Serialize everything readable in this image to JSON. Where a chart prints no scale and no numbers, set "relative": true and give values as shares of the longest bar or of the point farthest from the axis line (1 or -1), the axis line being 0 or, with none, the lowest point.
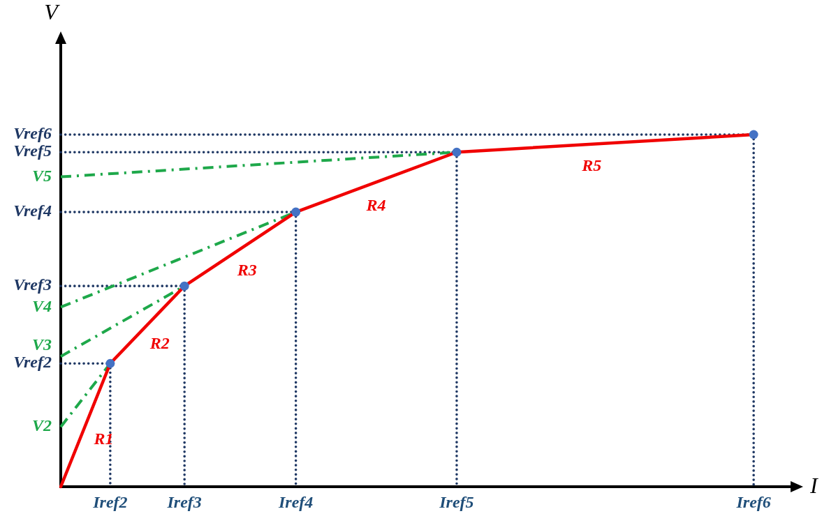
{
  "chart_data": {
    "type": "line",
    "relative": true,
    "xlabel": "I",
    "ylabel": "V",
    "categories": [
      null,
      null,
      null,
      null,
      "Iref2",
      null,
      null,
      null,
      null,
      null,
      "Iref3",
      null,
      null,
      null,
      null,
      null,
      null,
      null,
      null,
      "Iref4",
      null,
      null,
      null,
      null,
      null,
      null,
      null,
      null,
      null,
      null,
      null,
      null,
      "Iref5",
      null,
      null,
      null,
      null,
      null,
      null,
      null,
      null,
      null,
      null,
      null,
      null,
      null,
      null,
      null,
      null,
      null,
      null,
      null,
      null,
      null,
      null,
      null,
      "Iref6",
      null,
      null,
      null,
      null
    ],
    "series": [
      {
        "name": "Vref2",
        "color": "#1f3864",
        "line_style": "dotted",
        "values": [
          0.35,
          null,
          null,
          null,
          0.35,
          null,
          null,
          null,
          null,
          null,
          null,
          null,
          null,
          null,
          null,
          null,
          null,
          null,
          null,
          null,
          null,
          null,
          null,
          null,
          null,
          null,
          null,
          null,
          null,
          null,
          null,
          null,
          null,
          null,
          null,
          null,
          null,
          null,
          null,
          null,
          null,
          null,
          null,
          null,
          null,
          null,
          null,
          null,
          null,
          null,
          null,
          null,
          null,
          null,
          null,
          null,
          null,
          null,
          null,
          null,
          null
        ]
      },
      {
        "name": "Vref3",
        "color": "#1f3864",
        "line_style": "dotted",
        "values": [
          0.57,
          null,
          null,
          null,
          null,
          null,
          null,
          null,
          null,
          null,
          0.57,
          null,
          null,
          null,
          null,
          null,
          null,
          null,
          null,
          null,
          null,
          null,
          null,
          null,
          null,
          null,
          null,
          null,
          null,
          null,
          null,
          null,
          null,
          null,
          null,
          null,
          null,
          null,
          null,
          null,
          null,
          null,
          null,
          null,
          null,
          null,
          null,
          null,
          null,
          null,
          null,
          null,
          null,
          null,
          null,
          null,
          null,
          null,
          null,
          null,
          null
        ]
      },
      {
        "name": "Vref4",
        "color": "#1f3864",
        "line_style": "dotted",
        "values": [
          0.78,
          null,
          null,
          null,
          null,
          null,
          null,
          null,
          null,
          null,
          null,
          null,
          null,
          null,
          null,
          null,
          null,
          null,
          null,
          0.78,
          null,
          null,
          null,
          null,
          null,
          null,
          null,
          null,
          null,
          null,
          null,
          null,
          null,
          null,
          null,
          null,
          null,
          null,
          null,
          null,
          null,
          null,
          null,
          null,
          null,
          null,
          null,
          null,
          null,
          null,
          null,
          null,
          null,
          null,
          null,
          null,
          null,
          null,
          null,
          null,
          null
        ]
      },
      {
        "name": "Vref5",
        "color": "#1f3864",
        "line_style": "dotted",
        "values": [
          0.95,
          null,
          null,
          null,
          null,
          null,
          null,
          null,
          null,
          null,
          null,
          null,
          null,
          null,
          null,
          null,
          null,
          null,
          null,
          null,
          null,
          null,
          null,
          null,
          null,
          null,
          null,
          null,
          null,
          null,
          null,
          null,
          0.95,
          null,
          null,
          null,
          null,
          null,
          null,
          null,
          null,
          null,
          null,
          null,
          null,
          null,
          null,
          null,
          null,
          null,
          null,
          null,
          null,
          null,
          null,
          null,
          null,
          null,
          null,
          null,
          null
        ]
      },
      {
        "name": "Vref6",
        "color": "#1f3864",
        "line_style": "dotted",
        "values": [
          1,
          null,
          null,
          null,
          null,
          null,
          null,
          null,
          null,
          null,
          null,
          null,
          null,
          null,
          null,
          null,
          null,
          null,
          null,
          null,
          null,
          null,
          null,
          null,
          null,
          null,
          null,
          null,
          null,
          null,
          null,
          null,
          null,
          null,
          null,
          null,
          null,
          null,
          null,
          null,
          null,
          null,
          null,
          null,
          null,
          null,
          null,
          null,
          null,
          null,
          null,
          null,
          null,
          null,
          null,
          null,
          1,
          null,
          null,
          null,
          null
        ]
      },
      {
        "color": "#1f3864",
        "line_style": "dotted",
        "x": [
          "Iref2",
          "Iref2"
        ],
        "values": [
          0.35,
          0
        ]
      },
      {
        "color": "#1f3864",
        "line_style": "dotted",
        "x": [
          "Iref3",
          "Iref3"
        ],
        "values": [
          0.57,
          0
        ]
      },
      {
        "color": "#1f3864",
        "line_style": "dotted",
        "x": [
          "Iref4",
          "Iref4"
        ],
        "values": [
          0.78,
          0
        ]
      },
      {
        "color": "#1f3864",
        "line_style": "dotted",
        "x": [
          "Iref5",
          "Iref5"
        ],
        "values": [
          0.95,
          0
        ]
      },
      {
        "color": "#1f3864",
        "line_style": "dotted",
        "x": [
          "Iref6",
          "Iref6"
        ],
        "values": [
          1,
          0
        ]
      },
      {
        "name": "V2",
        "color": "#1ea84a",
        "line_style": "dashed",
        "values": [
          0.17,
          null,
          null,
          null,
          0.35,
          null,
          null,
          null,
          null,
          null,
          null,
          null,
          null,
          null,
          null,
          null,
          null,
          null,
          null,
          null,
          null,
          null,
          null,
          null,
          null,
          null,
          null,
          null,
          null,
          null,
          null,
          null,
          null,
          null,
          null,
          null,
          null,
          null,
          null,
          null,
          null,
          null,
          null,
          null,
          null,
          null,
          null,
          null,
          null,
          null,
          null,
          null,
          null,
          null,
          null,
          null,
          null,
          null,
          null,
          null,
          null
        ]
      },
      {
        "name": "V3",
        "color": "#1ea84a",
        "line_style": "dashed",
        "values": [
          0.37,
          null,
          null,
          null,
          null,
          null,
          null,
          null,
          null,
          null,
          0.57,
          null,
          null,
          null,
          null,
          null,
          null,
          null,
          null,
          null,
          null,
          null,
          null,
          null,
          null,
          null,
          null,
          null,
          null,
          null,
          null,
          null,
          null,
          null,
          null,
          null,
          null,
          null,
          null,
          null,
          null,
          null,
          null,
          null,
          null,
          null,
          null,
          null,
          null,
          null,
          null,
          null,
          null,
          null,
          null,
          null,
          null,
          null,
          null,
          null,
          null
        ]
      },
      {
        "name": "V4",
        "color": "#1ea84a",
        "line_style": "dashed",
        "values": [
          0.51,
          null,
          null,
          null,
          null,
          null,
          null,
          null,
          null,
          null,
          null,
          null,
          null,
          null,
          null,
          null,
          null,
          null,
          null,
          0.78,
          null,
          null,
          null,
          null,
          null,
          null,
          null,
          null,
          null,
          null,
          null,
          null,
          null,
          null,
          null,
          null,
          null,
          null,
          null,
          null,
          null,
          null,
          null,
          null,
          null,
          null,
          null,
          null,
          null,
          null,
          null,
          null,
          null,
          null,
          null,
          null,
          null,
          null,
          null,
          null,
          null
        ]
      },
      {
        "name": "V5",
        "color": "#1ea84a",
        "line_style": "dashed",
        "values": [
          0.88,
          null,
          null,
          null,
          null,
          null,
          null,
          null,
          null,
          null,
          null,
          null,
          null,
          null,
          null,
          null,
          null,
          null,
          null,
          null,
          null,
          null,
          null,
          null,
          null,
          null,
          null,
          null,
          null,
          null,
          null,
          null,
          0.95,
          null,
          null,
          null,
          null,
          null,
          null,
          null,
          null,
          null,
          null,
          null,
          null,
          null,
          null,
          null,
          null,
          null,
          null,
          null,
          null,
          null,
          null,
          null,
          null,
          null,
          null,
          null,
          null
        ]
      },
      {
        "name": "R1",
        "color": "#f00000",
        "values": [
          0,
          null,
          null,
          null,
          0.35,
          null,
          null,
          null,
          null,
          null,
          null,
          null,
          null,
          null,
          null,
          null,
          null,
          null,
          null,
          null,
          null,
          null,
          null,
          null,
          null,
          null,
          null,
          null,
          null,
          null,
          null,
          null,
          null,
          null,
          null,
          null,
          null,
          null,
          null,
          null,
          null,
          null,
          null,
          null,
          null,
          null,
          null,
          null,
          null,
          null,
          null,
          null,
          null,
          null,
          null,
          null,
          null,
          null,
          null,
          null,
          null
        ]
      },
      {
        "name": "R2",
        "color": "#f00000",
        "values": [
          null,
          null,
          null,
          null,
          0.35,
          null,
          null,
          null,
          null,
          null,
          0.57,
          null,
          null,
          null,
          null,
          null,
          null,
          null,
          null,
          null,
          null,
          null,
          null,
          null,
          null,
          null,
          null,
          null,
          null,
          null,
          null,
          null,
          null,
          null,
          null,
          null,
          null,
          null,
          null,
          null,
          null,
          null,
          null,
          null,
          null,
          null,
          null,
          null,
          null,
          null,
          null,
          null,
          null,
          null,
          null,
          null,
          null,
          null,
          null,
          null,
          null
        ]
      },
      {
        "name": "R3",
        "color": "#f00000",
        "values": [
          null,
          null,
          null,
          null,
          null,
          null,
          null,
          null,
          null,
          null,
          0.57,
          null,
          null,
          null,
          null,
          null,
          null,
          null,
          null,
          0.78,
          null,
          null,
          null,
          null,
          null,
          null,
          null,
          null,
          null,
          null,
          null,
          null,
          null,
          null,
          null,
          null,
          null,
          null,
          null,
          null,
          null,
          null,
          null,
          null,
          null,
          null,
          null,
          null,
          null,
          null,
          null,
          null,
          null,
          null,
          null,
          null,
          null,
          null,
          null,
          null,
          null
        ]
      },
      {
        "name": "R4",
        "color": "#f00000",
        "values": [
          null,
          null,
          null,
          null,
          null,
          null,
          null,
          null,
          null,
          null,
          null,
          null,
          null,
          null,
          null,
          null,
          null,
          null,
          null,
          0.78,
          null,
          null,
          null,
          null,
          null,
          null,
          null,
          null,
          null,
          null,
          null,
          null,
          0.95,
          null,
          null,
          null,
          null,
          null,
          null,
          null,
          null,
          null,
          null,
          null,
          null,
          null,
          null,
          null,
          null,
          null,
          null,
          null,
          null,
          null,
          null,
          null,
          null,
          null,
          null,
          null,
          null
        ]
      },
      {
        "name": "R5",
        "color": "#f00000",
        "values": [
          null,
          null,
          null,
          null,
          null,
          null,
          null,
          null,
          null,
          null,
          null,
          null,
          null,
          null,
          null,
          null,
          null,
          null,
          null,
          null,
          null,
          null,
          null,
          null,
          null,
          null,
          null,
          null,
          null,
          null,
          null,
          null,
          0.95,
          null,
          null,
          null,
          null,
          null,
          null,
          null,
          null,
          null,
          null,
          null,
          null,
          null,
          null,
          null,
          null,
          null,
          null,
          null,
          null,
          null,
          null,
          null,
          1,
          null,
          null,
          null,
          null
        ]
      },
      {
        "type": "scatter",
        "color": "#4472c4",
        "marker": "circle",
        "x": [
          "Iref2",
          "Iref3",
          "Iref4",
          "Iref5",
          "Iref6"
        ],
        "values": [
          0.35,
          0.57,
          0.78,
          0.95,
          1
        ]
      }
    ]
  }
}
